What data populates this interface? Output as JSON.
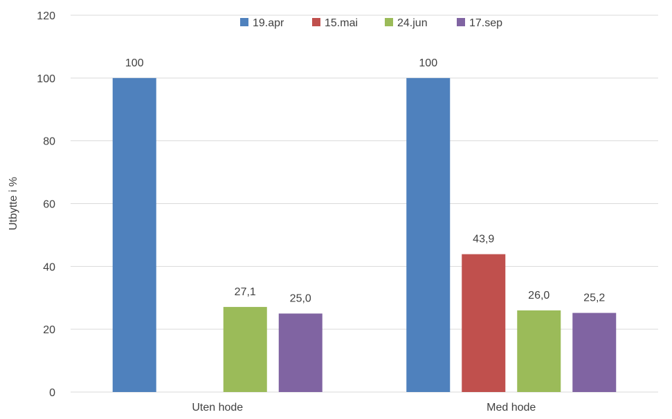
{
  "chart_data": {
    "type": "bar",
    "categories": [
      "Uten hode",
      "Med hode"
    ],
    "series": [
      {
        "name": "19.apr",
        "color": "#4f81bd",
        "values": [
          100,
          100
        ],
        "labels": [
          "100",
          "100"
        ]
      },
      {
        "name": "15.mai",
        "color": "#c0504d",
        "values": [
          null,
          43.9
        ],
        "labels": [
          "",
          "43,9"
        ]
      },
      {
        "name": "24.jun",
        "color": "#9bbb59",
        "values": [
          27.1,
          26.0
        ],
        "labels": [
          "27,1",
          "26,0"
        ]
      },
      {
        "name": "17.sep",
        "color": "#8064a2",
        "values": [
          25.0,
          25.2
        ],
        "labels": [
          "25,0",
          "25,2"
        ]
      }
    ],
    "ylabel": "Utbytte i %",
    "ylim": [
      0,
      120
    ],
    "yticks": [
      0,
      20,
      40,
      60,
      80,
      100,
      120
    ],
    "grid": true,
    "legend": "top-center"
  }
}
